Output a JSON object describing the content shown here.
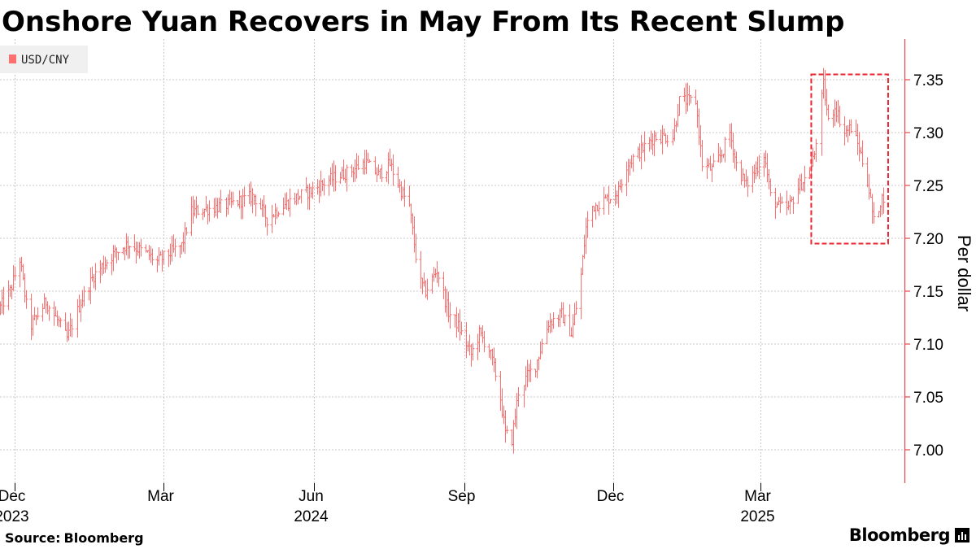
{
  "title": "Onshore Yuan Recovers in May From Its Recent Slump",
  "source": {
    "label": "Source:",
    "value": "Bloomberg"
  },
  "brand": "Bloomberg",
  "colors": {
    "series": "#ff6f6f",
    "axis": "#e8454c",
    "grid": "#c8c8c8",
    "highlight": "#e8262f"
  },
  "chart_data": {
    "type": "ohlc",
    "legend": [
      {
        "name": "USD/CNY",
        "color": "#ff6f6f"
      }
    ],
    "legend_position": "top-left",
    "ylabel": "Per dollar",
    "ylim": [
      6.97,
      7.38
    ],
    "yticks": [
      7.0,
      7.05,
      7.1,
      7.15,
      7.2,
      7.25,
      7.3,
      7.35
    ],
    "xlim": [
      "2023-11-22",
      "2025-05-22"
    ],
    "xticks": [
      {
        "date": "2023-12-01",
        "label": "Dec",
        "year": "2023"
      },
      {
        "date": "2024-03-01",
        "label": "Mar",
        "year": ""
      },
      {
        "date": "2024-06-01",
        "label": "Jun",
        "year": "2024"
      },
      {
        "date": "2024-09-01",
        "label": "Sep",
        "year": ""
      },
      {
        "date": "2024-12-01",
        "label": "Dec",
        "year": ""
      },
      {
        "date": "2025-03-01",
        "label": "Mar",
        "year": "2025"
      }
    ],
    "grid": true,
    "highlight_box": {
      "x_start": "2025-04-01",
      "x_end": "2025-05-18",
      "y_low": 7.195,
      "y_high": 7.355
    },
    "series_path": [
      [
        "2023-11-22",
        7.135
      ],
      [
        "2023-11-28",
        7.15
      ],
      [
        "2023-12-04",
        7.18
      ],
      [
        "2023-12-10",
        7.115
      ],
      [
        "2023-12-20",
        7.14
      ],
      [
        "2023-12-28",
        7.12
      ],
      [
        "2024-01-02",
        7.105
      ],
      [
        "2024-01-10",
        7.14
      ],
      [
        "2024-01-18",
        7.165
      ],
      [
        "2024-01-30",
        7.185
      ],
      [
        "2024-02-08",
        7.195
      ],
      [
        "2024-02-20",
        7.185
      ],
      [
        "2024-02-26",
        7.178
      ],
      [
        "2024-03-12",
        7.193
      ],
      [
        "2024-03-18",
        7.225
      ],
      [
        "2024-03-28",
        7.228
      ],
      [
        "2024-04-10",
        7.232
      ],
      [
        "2024-04-25",
        7.24
      ],
      [
        "2024-05-03",
        7.218
      ],
      [
        "2024-05-10",
        7.228
      ],
      [
        "2024-05-20",
        7.238
      ],
      [
        "2024-05-30",
        7.245
      ],
      [
        "2024-06-10",
        7.255
      ],
      [
        "2024-06-25",
        7.265
      ],
      [
        "2024-07-02",
        7.272
      ],
      [
        "2024-07-10",
        7.26
      ],
      [
        "2024-07-17",
        7.27
      ],
      [
        "2024-07-24",
        7.245
      ],
      [
        "2024-07-29",
        7.23
      ],
      [
        "2024-08-04",
        7.16
      ],
      [
        "2024-08-08",
        7.15
      ],
      [
        "2024-08-15",
        7.17
      ],
      [
        "2024-08-22",
        7.13
      ],
      [
        "2024-08-27",
        7.12
      ],
      [
        "2024-09-05",
        7.09
      ],
      [
        "2024-09-10",
        7.11
      ],
      [
        "2024-09-16",
        7.095
      ],
      [
        "2024-09-22",
        7.06
      ],
      [
        "2024-09-26",
        7.015
      ],
      [
        "2024-09-30",
        7.01
      ],
      [
        "2024-10-04",
        7.055
      ],
      [
        "2024-10-09",
        7.07
      ],
      [
        "2024-10-14",
        7.08
      ],
      [
        "2024-10-22",
        7.12
      ],
      [
        "2024-10-30",
        7.128
      ],
      [
        "2024-11-05",
        7.11
      ],
      [
        "2024-11-10",
        7.15
      ],
      [
        "2024-11-14",
        7.21
      ],
      [
        "2024-11-18",
        7.23
      ],
      [
        "2024-11-28",
        7.238
      ],
      [
        "2024-12-04",
        7.245
      ],
      [
        "2024-12-09",
        7.27
      ],
      [
        "2024-12-16",
        7.28
      ],
      [
        "2024-12-26",
        7.296
      ],
      [
        "2025-01-06",
        7.296
      ],
      [
        "2025-01-10",
        7.33
      ],
      [
        "2025-01-20",
        7.33
      ],
      [
        "2025-01-24",
        7.27
      ],
      [
        "2025-01-30",
        7.265
      ],
      [
        "2025-02-05",
        7.28
      ],
      [
        "2025-02-10",
        7.3
      ],
      [
        "2025-02-14",
        7.27
      ],
      [
        "2025-02-20",
        7.25
      ],
      [
        "2025-02-26",
        7.265
      ],
      [
        "2025-03-03",
        7.28
      ],
      [
        "2025-03-07",
        7.24
      ],
      [
        "2025-03-12",
        7.23
      ],
      [
        "2025-03-18",
        7.228
      ],
      [
        "2025-03-24",
        7.248
      ],
      [
        "2025-03-31",
        7.262
      ],
      [
        "2025-04-03",
        7.28
      ],
      [
        "2025-04-08",
        7.345
      ],
      [
        "2025-04-11",
        7.31
      ],
      [
        "2025-04-15",
        7.325
      ],
      [
        "2025-04-21",
        7.3
      ],
      [
        "2025-04-25",
        7.305
      ],
      [
        "2025-04-30",
        7.285
      ],
      [
        "2025-05-05",
        7.255
      ],
      [
        "2025-05-09",
        7.215
      ],
      [
        "2025-05-13",
        7.235
      ],
      [
        "2025-05-15",
        7.24
      ]
    ]
  }
}
